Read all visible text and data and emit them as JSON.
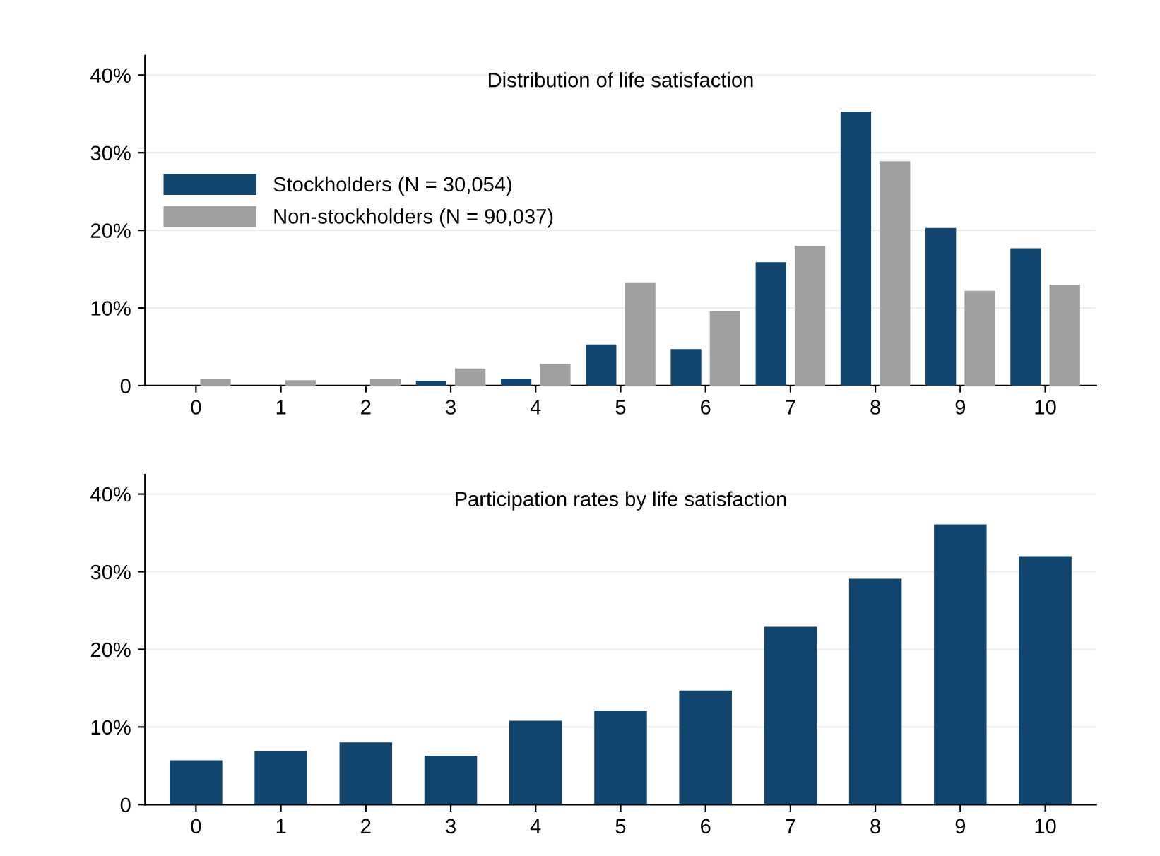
{
  "chart_data": [
    {
      "type": "bar",
      "title": "Distribution of life satisfaction",
      "categories": [
        "0",
        "1",
        "2",
        "3",
        "4",
        "5",
        "6",
        "7",
        "8",
        "9",
        "10"
      ],
      "series": [
        {
          "name": "Stockholders (N = 30,054)",
          "color": "#12456e",
          "values": [
            0,
            0,
            0,
            0.6,
            0.9,
            5.3,
            4.7,
            15.9,
            35.3,
            20.3,
            17.7
          ]
        },
        {
          "name": "Non-stockholders (N = 90,037)",
          "color": "#a0a0a0",
          "values": [
            0.9,
            0.7,
            0.9,
            2.2,
            2.8,
            13.3,
            9.6,
            18.0,
            28.9,
            12.2,
            13.0
          ]
        }
      ],
      "ylim": [
        0,
        42.5
      ],
      "yticks": [
        0,
        {
          "value": 10,
          "label": "10%"
        },
        {
          "value": 20,
          "label": "20%"
        },
        {
          "value": 30,
          "label": "30%"
        },
        {
          "value": 40,
          "label": "40%"
        }
      ],
      "grid": "y",
      "legend": "center left"
    },
    {
      "type": "bar",
      "title": "Participation rates by life satisfaction",
      "categories": [
        "0",
        "1",
        "2",
        "3",
        "4",
        "5",
        "6",
        "7",
        "8",
        "9",
        "10"
      ],
      "series": [
        {
          "color": "#12456e",
          "values": [
            5.7,
            6.9,
            8.0,
            6.3,
            10.8,
            12.1,
            14.7,
            22.9,
            29.1,
            36.1,
            32.0
          ]
        }
      ],
      "ylim": [
        0,
        42.5
      ],
      "yticks": [
        0,
        {
          "value": 10,
          "label": "10%"
        },
        {
          "value": 20,
          "label": "20%"
        },
        {
          "value": 30,
          "label": "30%"
        },
        {
          "value": 40,
          "label": "40%"
        }
      ],
      "grid": "y"
    }
  ]
}
